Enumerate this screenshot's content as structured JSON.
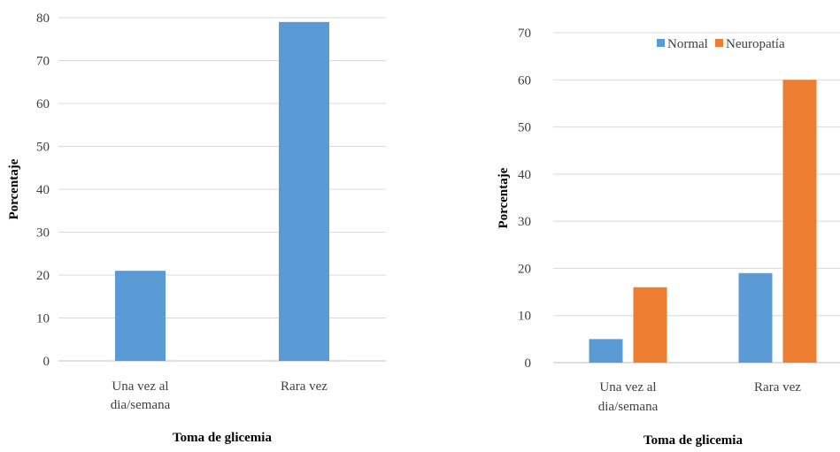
{
  "colors": {
    "normal": "#5B9BD5",
    "neuropatia": "#ED7D31",
    "grid": "#D9D9D9",
    "axis": "#BFBFBF"
  },
  "chart_data": [
    {
      "type": "bar",
      "categories": [
        "Una vez al dia/semana",
        "Rara vez"
      ],
      "category_lines": [
        [
          "Una vez al",
          "dia/semana"
        ],
        [
          "Rara vez"
        ]
      ],
      "series": [
        {
          "values": [
            21,
            79
          ]
        }
      ],
      "xlabel": "Toma de glicemia",
      "ylabel": "Porcentaje",
      "ylim": [
        0,
        80
      ],
      "yticks": [
        0,
        10,
        20,
        30,
        40,
        50,
        60,
        70,
        80
      ],
      "grid": true,
      "legend": "none"
    },
    {
      "type": "bar",
      "categories": [
        "Una vez al dia/semana",
        "Rara vez"
      ],
      "category_lines": [
        [
          "Una vez al",
          "dia/semana"
        ],
        [
          "Rara vez"
        ]
      ],
      "series": [
        {
          "name": "Normal",
          "values": [
            5,
            19
          ]
        },
        {
          "name": "Neuropatía",
          "values": [
            16,
            60
          ]
        }
      ],
      "xlabel": "Toma de glicemia",
      "ylabel": "Porcentaje",
      "ylim": [
        0,
        70
      ],
      "yticks": [
        0,
        10,
        20,
        30,
        40,
        50,
        60,
        70
      ],
      "grid": true,
      "legend": "top-right"
    }
  ]
}
